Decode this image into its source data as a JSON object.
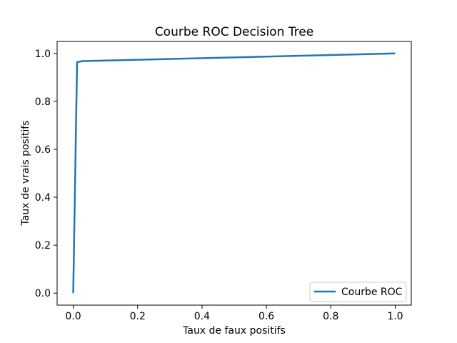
{
  "chart_data": {
    "type": "line",
    "title": "Courbe ROC Decision Tree",
    "xlabel": "Taux de faux positifs",
    "ylabel": "Taux de vrais positifs",
    "xlim": [
      -0.05,
      1.05
    ],
    "ylim": [
      -0.05,
      1.05
    ],
    "xticks": [
      "0.0",
      "0.2",
      "0.4",
      "0.6",
      "0.8",
      "1.0"
    ],
    "yticks": [
      "0.0",
      "0.2",
      "0.4",
      "0.6",
      "0.8",
      "1.0"
    ],
    "grid": false,
    "legend_position": "lower-right",
    "series": [
      {
        "name": "Courbe ROC",
        "color": "#1f77b4",
        "x": [
          0.0,
          0.012,
          0.03,
          1.0
        ],
        "y": [
          0.0,
          0.964,
          0.968,
          1.0
        ]
      }
    ]
  }
}
